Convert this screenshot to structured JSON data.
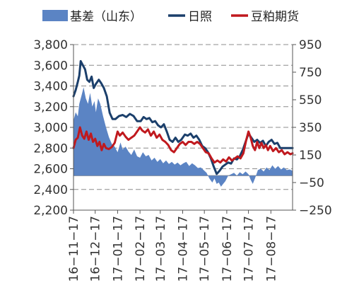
{
  "chart_data": {
    "type": "line",
    "title": "",
    "xlabel": "",
    "ylabel": "",
    "legend_position": "top",
    "grid": "horizontal-dashed",
    "left_axis": {
      "ylim": [
        2200,
        3800
      ],
      "ticks": [
        2200,
        2400,
        2600,
        2800,
        3000,
        3200,
        3400,
        3600,
        3800
      ],
      "tick_labels": [
        "2,200",
        "2,400",
        "2,600",
        "2,800",
        "3,000",
        "3,200",
        "3,400",
        "3,600",
        "3,800"
      ]
    },
    "right_axis": {
      "ylim": [
        -250,
        950
      ],
      "ticks": [
        -250,
        -50,
        150,
        350,
        550,
        750,
        950
      ],
      "tick_labels": [
        "−250",
        "−50",
        "150",
        "350",
        "550",
        "750",
        "950"
      ]
    },
    "x_axis": {
      "start": "2016-11-01",
      "end": "2017-08-31",
      "ticks": [
        "2016-11-01",
        "2016-12-01",
        "2017-01-01",
        "2017-02-01",
        "2017-03-01",
        "2017-04-01",
        "2017-05-01",
        "2017-06-01",
        "2017-07-01",
        "2017-08-01"
      ],
      "tick_labels": [
        "16−11−17",
        "16−12−17",
        "17−01−17",
        "17−02−17",
        "17−03−17",
        "17−04−17",
        "17−05−17",
        "17−06−17",
        "17−07−17",
        "17−08−17"
      ]
    },
    "series": [
      {
        "name": "基差（山东）",
        "kind": "area",
        "axis": "right",
        "color": "#5b84c4",
        "points": [
          [
            "2016-11-01",
            400
          ],
          [
            "2016-11-04",
            460
          ],
          [
            "2016-11-07",
            430
          ],
          [
            "2016-11-09",
            520
          ],
          [
            "2016-11-12",
            580
          ],
          [
            "2016-11-15",
            640
          ],
          [
            "2016-11-18",
            560
          ],
          [
            "2016-11-21",
            520
          ],
          [
            "2016-11-24",
            600
          ],
          [
            "2016-11-27",
            500
          ],
          [
            "2016-11-30",
            540
          ],
          [
            "2016-12-02",
            460
          ],
          [
            "2016-12-05",
            560
          ],
          [
            "2016-12-08",
            520
          ],
          [
            "2016-12-12",
            430
          ],
          [
            "2016-12-16",
            350
          ],
          [
            "2016-12-20",
            280
          ],
          [
            "2016-12-24",
            230
          ],
          [
            "2016-12-28",
            210
          ],
          [
            "2017-01-01",
            170
          ],
          [
            "2017-01-05",
            240
          ],
          [
            "2017-01-08",
            190
          ],
          [
            "2017-01-12",
            210
          ],
          [
            "2017-01-16",
            175
          ],
          [
            "2017-01-20",
            150
          ],
          [
            "2017-01-24",
            190
          ],
          [
            "2017-01-28",
            140
          ],
          [
            "2017-02-01",
            130
          ],
          [
            "2017-02-05",
            170
          ],
          [
            "2017-02-09",
            140
          ],
          [
            "2017-02-13",
            150
          ],
          [
            "2017-02-17",
            110
          ],
          [
            "2017-02-21",
            130
          ],
          [
            "2017-02-25",
            100
          ],
          [
            "2017-03-01",
            120
          ],
          [
            "2017-03-05",
            90
          ],
          [
            "2017-03-09",
            110
          ],
          [
            "2017-03-13",
            85
          ],
          [
            "2017-03-17",
            100
          ],
          [
            "2017-03-21",
            80
          ],
          [
            "2017-03-25",
            95
          ],
          [
            "2017-03-29",
            75
          ],
          [
            "2017-04-02",
            90
          ],
          [
            "2017-04-06",
            100
          ],
          [
            "2017-04-10",
            70
          ],
          [
            "2017-04-14",
            90
          ],
          [
            "2017-04-18",
            75
          ],
          [
            "2017-04-22",
            55
          ],
          [
            "2017-04-26",
            60
          ],
          [
            "2017-04-30",
            40
          ],
          [
            "2017-05-04",
            20
          ],
          [
            "2017-05-08",
            -20
          ],
          [
            "2017-05-12",
            -50
          ],
          [
            "2017-05-15",
            -20
          ],
          [
            "2017-05-18",
            -60
          ],
          [
            "2017-05-21",
            -50
          ],
          [
            "2017-05-24",
            -80
          ],
          [
            "2017-05-27",
            -60
          ],
          [
            "2017-05-30",
            -40
          ],
          [
            "2017-06-03",
            0
          ],
          [
            "2017-06-07",
            10
          ],
          [
            "2017-06-11",
            20
          ],
          [
            "2017-06-15",
            0
          ],
          [
            "2017-06-19",
            25
          ],
          [
            "2017-06-23",
            10
          ],
          [
            "2017-06-27",
            30
          ],
          [
            "2017-07-01",
            10
          ],
          [
            "2017-07-04",
            -30
          ],
          [
            "2017-07-07",
            -60
          ],
          [
            "2017-07-10",
            -20
          ],
          [
            "2017-07-14",
            40
          ],
          [
            "2017-07-18",
            50
          ],
          [
            "2017-07-22",
            30
          ],
          [
            "2017-07-26",
            60
          ],
          [
            "2017-07-30",
            40
          ],
          [
            "2017-08-03",
            75
          ],
          [
            "2017-08-07",
            50
          ],
          [
            "2017-08-11",
            70
          ],
          [
            "2017-08-15",
            45
          ],
          [
            "2017-08-19",
            60
          ],
          [
            "2017-08-23",
            40
          ],
          [
            "2017-08-27",
            45
          ],
          [
            "2017-08-31",
            35
          ]
        ]
      },
      {
        "name": "日照",
        "kind": "line",
        "axis": "left",
        "color": "#1b3f6b",
        "points": [
          [
            "2016-11-01",
            3300
          ],
          [
            "2016-11-04",
            3360
          ],
          [
            "2016-11-07",
            3440
          ],
          [
            "2016-11-09",
            3500
          ],
          [
            "2016-11-11",
            3640
          ],
          [
            "2016-11-14",
            3600
          ],
          [
            "2016-11-17",
            3560
          ],
          [
            "2016-11-20",
            3460
          ],
          [
            "2016-11-23",
            3440
          ],
          [
            "2016-11-26",
            3490
          ],
          [
            "2016-11-29",
            3380
          ],
          [
            "2016-12-02",
            3420
          ],
          [
            "2016-12-06",
            3460
          ],
          [
            "2016-12-09",
            3430
          ],
          [
            "2016-12-13",
            3380
          ],
          [
            "2016-12-17",
            3300
          ],
          [
            "2016-12-21",
            3140
          ],
          [
            "2016-12-25",
            3080
          ],
          [
            "2016-12-29",
            3080
          ],
          [
            "2017-01-03",
            3110
          ],
          [
            "2017-01-08",
            3120
          ],
          [
            "2017-01-13",
            3100
          ],
          [
            "2017-01-18",
            3130
          ],
          [
            "2017-01-23",
            3110
          ],
          [
            "2017-01-28",
            3060
          ],
          [
            "2017-02-02",
            3060
          ],
          [
            "2017-02-06",
            3100
          ],
          [
            "2017-02-10",
            3080
          ],
          [
            "2017-02-14",
            3090
          ],
          [
            "2017-02-18",
            3050
          ],
          [
            "2017-02-22",
            3060
          ],
          [
            "2017-02-26",
            3020
          ],
          [
            "2017-03-02",
            3000
          ],
          [
            "2017-03-06",
            3030
          ],
          [
            "2017-03-10",
            2960
          ],
          [
            "2017-03-14",
            2880
          ],
          [
            "2017-03-18",
            2860
          ],
          [
            "2017-03-22",
            2900
          ],
          [
            "2017-03-26",
            2860
          ],
          [
            "2017-03-30",
            2880
          ],
          [
            "2017-04-04",
            2930
          ],
          [
            "2017-04-08",
            2920
          ],
          [
            "2017-04-12",
            2940
          ],
          [
            "2017-04-16",
            2900
          ],
          [
            "2017-04-20",
            2920
          ],
          [
            "2017-04-24",
            2880
          ],
          [
            "2017-04-28",
            2820
          ],
          [
            "2017-05-02",
            2800
          ],
          [
            "2017-05-06",
            2760
          ],
          [
            "2017-05-10",
            2700
          ],
          [
            "2017-05-14",
            2620
          ],
          [
            "2017-05-18",
            2550
          ],
          [
            "2017-05-22",
            2580
          ],
          [
            "2017-05-26",
            2620
          ],
          [
            "2017-05-30",
            2640
          ],
          [
            "2017-06-03",
            2660
          ],
          [
            "2017-06-07",
            2650
          ],
          [
            "2017-06-11",
            2700
          ],
          [
            "2017-06-15",
            2690
          ],
          [
            "2017-06-19",
            2720
          ],
          [
            "2017-06-23",
            2780
          ],
          [
            "2017-06-27",
            2860
          ],
          [
            "2017-07-01",
            2940
          ],
          [
            "2017-07-05",
            2900
          ],
          [
            "2017-07-09",
            2860
          ],
          [
            "2017-07-13",
            2880
          ],
          [
            "2017-07-17",
            2850
          ],
          [
            "2017-07-21",
            2870
          ],
          [
            "2017-07-25",
            2820
          ],
          [
            "2017-07-29",
            2860
          ],
          [
            "2017-08-02",
            2880
          ],
          [
            "2017-08-06",
            2840
          ],
          [
            "2017-08-10",
            2850
          ],
          [
            "2017-08-14",
            2800
          ],
          [
            "2017-08-18",
            2800
          ],
          [
            "2017-08-24",
            2800
          ],
          [
            "2017-08-31",
            2800
          ]
        ]
      },
      {
        "name": "豆粕期货",
        "kind": "line",
        "axis": "left",
        "color": "#c0191e",
        "points": [
          [
            "2016-11-01",
            2800
          ],
          [
            "2016-11-04",
            2880
          ],
          [
            "2016-11-07",
            2900
          ],
          [
            "2016-11-10",
            3000
          ],
          [
            "2016-11-13",
            2920
          ],
          [
            "2016-11-16",
            2890
          ],
          [
            "2016-11-19",
            2960
          ],
          [
            "2016-11-22",
            2880
          ],
          [
            "2016-11-25",
            2940
          ],
          [
            "2016-11-28",
            2860
          ],
          [
            "2016-12-01",
            2890
          ],
          [
            "2016-12-04",
            2820
          ],
          [
            "2016-12-07",
            2860
          ],
          [
            "2016-12-10",
            2780
          ],
          [
            "2016-12-13",
            2840
          ],
          [
            "2016-12-16",
            2800
          ],
          [
            "2016-12-20",
            2790
          ],
          [
            "2016-12-24",
            2810
          ],
          [
            "2016-12-28",
            2850
          ],
          [
            "2017-01-01",
            2960
          ],
          [
            "2017-01-04",
            2920
          ],
          [
            "2017-01-08",
            2950
          ],
          [
            "2017-01-12",
            2910
          ],
          [
            "2017-01-16",
            2880
          ],
          [
            "2017-01-20",
            2900
          ],
          [
            "2017-01-24",
            2920
          ],
          [
            "2017-01-28",
            2960
          ],
          [
            "2017-02-01",
            3000
          ],
          [
            "2017-02-04",
            2970
          ],
          [
            "2017-02-08",
            2950
          ],
          [
            "2017-02-12",
            2980
          ],
          [
            "2017-02-16",
            2920
          ],
          [
            "2017-02-20",
            2960
          ],
          [
            "2017-02-24",
            2900
          ],
          [
            "2017-02-28",
            2930
          ],
          [
            "2017-03-04",
            2880
          ],
          [
            "2017-03-08",
            2860
          ],
          [
            "2017-03-12",
            2830
          ],
          [
            "2017-03-16",
            2780
          ],
          [
            "2017-03-20",
            2760
          ],
          [
            "2017-03-24",
            2800
          ],
          [
            "2017-03-28",
            2840
          ],
          [
            "2017-04-01",
            2860
          ],
          [
            "2017-04-05",
            2830
          ],
          [
            "2017-04-09",
            2860
          ],
          [
            "2017-04-13",
            2860
          ],
          [
            "2017-04-17",
            2840
          ],
          [
            "2017-04-21",
            2860
          ],
          [
            "2017-04-25",
            2840
          ],
          [
            "2017-04-29",
            2800
          ],
          [
            "2017-05-03",
            2760
          ],
          [
            "2017-05-07",
            2750
          ],
          [
            "2017-05-11",
            2700
          ],
          [
            "2017-05-15",
            2660
          ],
          [
            "2017-05-19",
            2680
          ],
          [
            "2017-05-23",
            2660
          ],
          [
            "2017-05-27",
            2690
          ],
          [
            "2017-05-31",
            2670
          ],
          [
            "2017-06-04",
            2710
          ],
          [
            "2017-06-08",
            2680
          ],
          [
            "2017-06-12",
            2700
          ],
          [
            "2017-06-16",
            2720
          ],
          [
            "2017-06-20",
            2700
          ],
          [
            "2017-06-24",
            2750
          ],
          [
            "2017-06-28",
            2880
          ],
          [
            "2017-07-01",
            2960
          ],
          [
            "2017-07-04",
            2900
          ],
          [
            "2017-07-07",
            2820
          ],
          [
            "2017-07-10",
            2780
          ],
          [
            "2017-07-13",
            2860
          ],
          [
            "2017-07-16",
            2800
          ],
          [
            "2017-07-19",
            2850
          ],
          [
            "2017-07-22",
            2800
          ],
          [
            "2017-07-25",
            2830
          ],
          [
            "2017-07-28",
            2780
          ],
          [
            "2017-07-31",
            2820
          ],
          [
            "2017-08-04",
            2770
          ],
          [
            "2017-08-08",
            2800
          ],
          [
            "2017-08-12",
            2760
          ],
          [
            "2017-08-16",
            2780
          ],
          [
            "2017-08-20",
            2740
          ],
          [
            "2017-08-24",
            2760
          ],
          [
            "2017-08-28",
            2740
          ],
          [
            "2017-08-31",
            2750
          ]
        ]
      }
    ]
  }
}
